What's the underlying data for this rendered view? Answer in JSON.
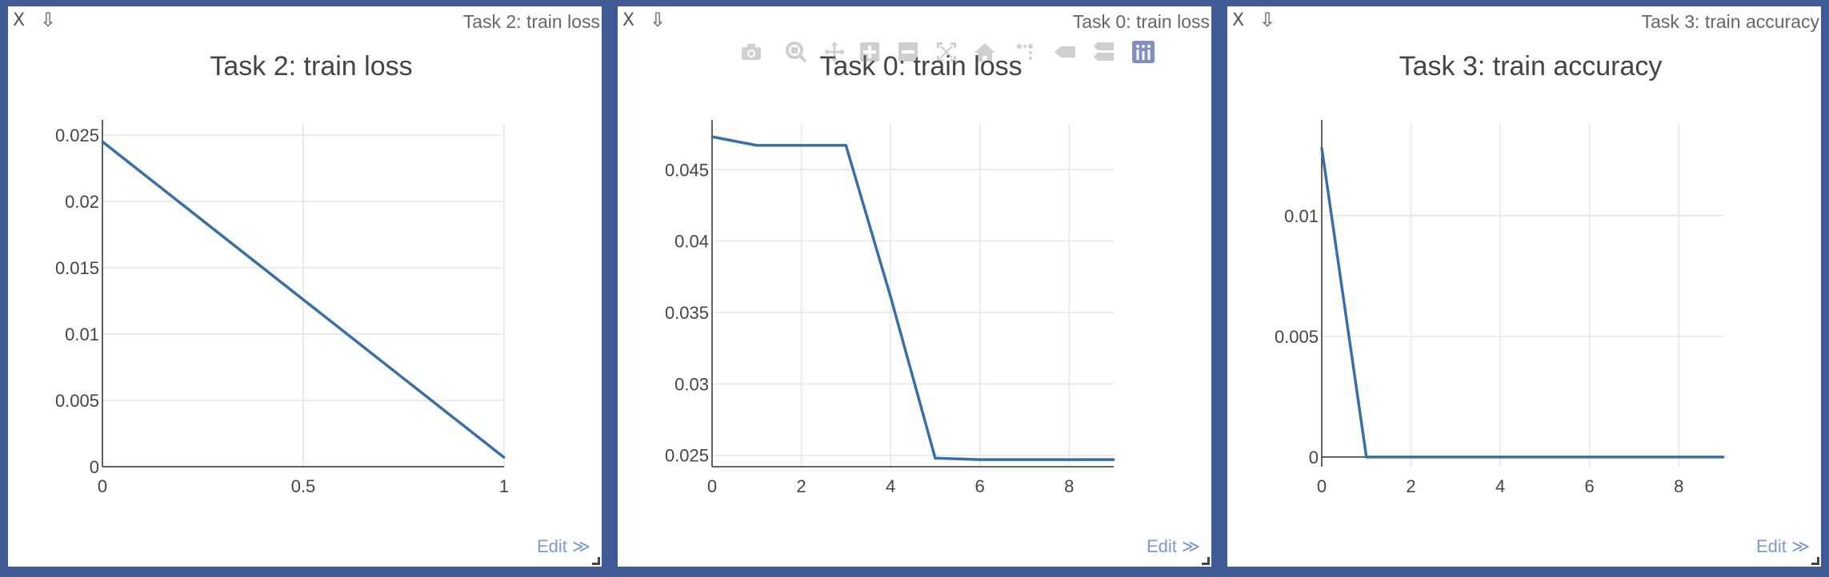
{
  "panes": [
    {
      "title": "Task 2: train loss",
      "close_label": "X",
      "download_label": "⇩",
      "edit_label": "Edit ≫",
      "chart_data": {
        "type": "line",
        "title": "Task 2: train loss",
        "x": [
          0,
          1
        ],
        "series": [
          {
            "values": [
              0.0245,
              0.0007
            ]
          }
        ],
        "xlim": [
          0,
          1
        ],
        "ylim": [
          0,
          0.0253
        ],
        "xticks": [
          0,
          0.5,
          1
        ],
        "xtick_labels": [
          "0",
          "0.5",
          "1"
        ],
        "yticks": [
          0,
          0.005,
          0.01,
          0.015,
          0.02,
          0.025
        ],
        "ytick_labels": [
          "0",
          "0.005",
          "0.01",
          "0.015",
          "0.02",
          "0.025"
        ],
        "grid": true,
        "color": "#3a6fa6"
      }
    },
    {
      "title": "Task 0: train loss",
      "close_label": "X",
      "download_label": "⇩",
      "edit_label": "Edit ≫",
      "chart_data": {
        "type": "line",
        "title": "Task 0: train loss",
        "x": [
          0,
          1,
          2,
          3,
          4,
          5,
          6,
          7,
          8,
          9
        ],
        "series": [
          {
            "values": [
              0.0473,
              0.0467,
              0.0467,
              0.0467,
              0.0361,
              0.0248,
              0.0247,
              0.0247,
              0.0247,
              0.0247
            ]
          }
        ],
        "xlim": [
          0,
          9
        ],
        "ylim": [
          0.0242,
          0.0477
        ],
        "xticks": [
          0,
          2,
          4,
          6,
          8
        ],
        "xtick_labels": [
          "0",
          "2",
          "4",
          "6",
          "8"
        ],
        "yticks": [
          0.025,
          0.03,
          0.035,
          0.04,
          0.045
        ],
        "ytick_labels": [
          "0.025",
          "0.03",
          "0.035",
          "0.04",
          "0.045"
        ],
        "grid": true,
        "color": "#3a6fa6"
      }
    },
    {
      "title": "Task 3: train accuracy",
      "close_label": "X",
      "download_label": "⇩",
      "edit_label": "Edit ≫",
      "chart_data": {
        "type": "line",
        "title": "Task 3: train accuracy",
        "x": [
          0,
          1,
          2,
          3,
          4,
          5,
          6,
          7,
          8,
          9
        ],
        "series": [
          {
            "values": [
              0.0128,
              0,
              0,
              0,
              0,
              0,
              0,
              0,
              0,
              0
            ]
          }
        ],
        "xlim": [
          0,
          9
        ],
        "ylim": [
          -0.0004,
          0.0135
        ],
        "xticks": [
          0,
          2,
          4,
          6,
          8
        ],
        "xtick_labels": [
          "0",
          "2",
          "4",
          "6",
          "8"
        ],
        "yticks": [
          0,
          0.005,
          0.01
        ],
        "ytick_labels": [
          "0",
          "0.005",
          "0.01"
        ],
        "grid": true,
        "color": "#3a6fa6"
      }
    }
  ],
  "modebar": {
    "buttons": [
      "camera-icon",
      "zoom-icon",
      "pan-icon",
      "zoom-in-icon",
      "zoom-out-icon",
      "autoscale-icon",
      "home-icon",
      "spike-lines-icon",
      "hover-closest-icon",
      "hover-compare-icon",
      "plotly-logo-icon"
    ]
  },
  "colors": {
    "background": "#3f5a94",
    "line": "#3a6fa6",
    "grid": "#e6e6e6"
  }
}
